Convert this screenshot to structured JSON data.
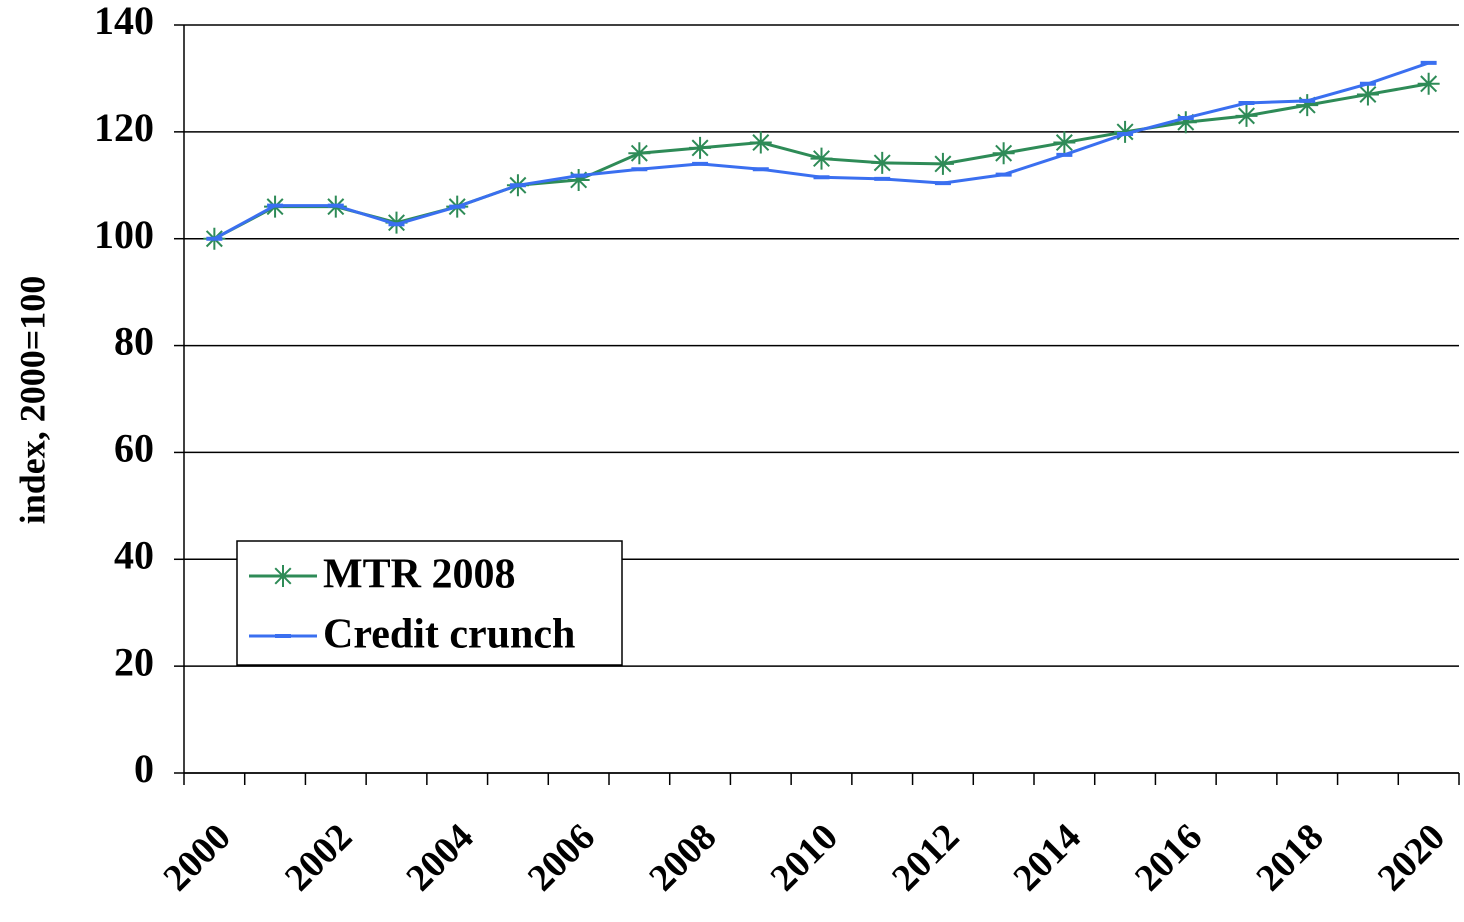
{
  "chart_data": {
    "type": "line",
    "y_label": "index, 2000=100",
    "categories": [
      "2000",
      null,
      "2002",
      null,
      "2004",
      null,
      "2006",
      null,
      "2008",
      null,
      "2010",
      null,
      "2012",
      null,
      "2014",
      null,
      "2016",
      null,
      "2018",
      null,
      "2020"
    ],
    "series": [
      {
        "name": "MTR 2008",
        "color": "#2e8b57",
        "marker": "asterisk",
        "values": [
          100,
          106,
          106,
          103,
          106,
          110,
          111,
          116,
          117,
          118,
          115,
          114.2,
          114,
          116,
          118,
          120,
          121.8,
          123,
          125,
          127,
          129
        ]
      },
      {
        "name": "Credit crunch",
        "color": "#3a6ff0",
        "marker": "dash",
        "values": [
          100,
          106.2,
          106.2,
          102.7,
          106,
          110,
          111.8,
          113,
          114,
          113,
          111.5,
          111.2,
          110.4,
          112,
          115.7,
          119.6,
          122.6,
          125.4,
          125.8,
          129,
          132.9
        ]
      }
    ],
    "ylim": [
      0,
      140
    ],
    "yticks": [
      0,
      20,
      40,
      60,
      80,
      100,
      120,
      140
    ],
    "grid": true,
    "legend": "lower left"
  }
}
